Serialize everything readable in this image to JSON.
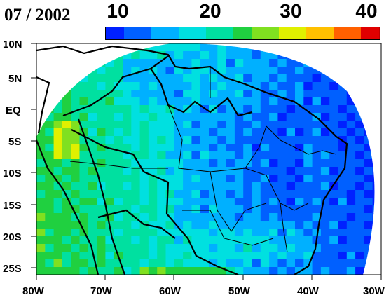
{
  "title": "07 / 2002",
  "colorbar": {
    "labels": [
      "10",
      "20",
      "30",
      "40"
    ],
    "min": 10,
    "max": 40,
    "colors": [
      "#0020ff",
      "#0060ff",
      "#00b0ff",
      "#00e0e0",
      "#00e0a0",
      "#20d040",
      "#80e020",
      "#e0f000",
      "#ffc000",
      "#ff6000",
      "#e00000"
    ]
  },
  "map": {
    "y_ticks": [
      "10N",
      "5N",
      "EQ",
      "5S",
      "10S",
      "15S",
      "20S",
      "25S"
    ],
    "x_ticks": [
      "80W",
      "70W",
      "60W",
      "50W",
      "40W",
      "30W"
    ]
  }
}
